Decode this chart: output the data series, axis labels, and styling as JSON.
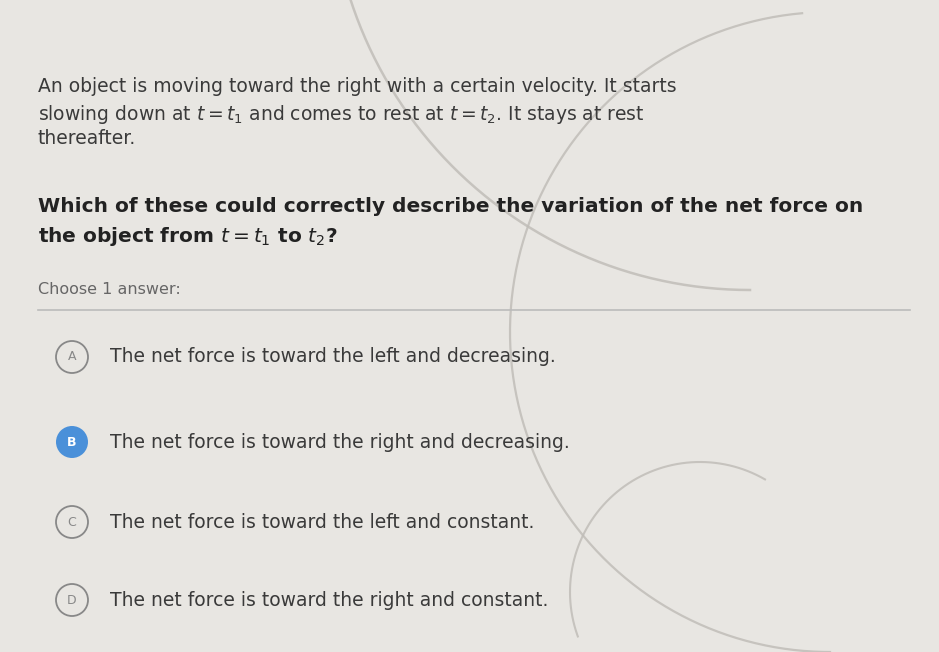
{
  "bg_color": "#e8e6e2",
  "title_paragraph_line1": "An object is moving toward the right with a certain velocity. It starts",
  "title_paragraph_line2": "slowing down at $t = t_1$ and comes to rest at $t = t_2$. It stays at rest",
  "title_paragraph_line3": "thereafter.",
  "question_line1": "Which of these could correctly describe the variation of the net force on",
  "question_line2": "the object from $t = t_1$ to $t_2$?",
  "choose_label": "Choose 1 answer:",
  "options": [
    {
      "label": "A",
      "text": "The net force is toward the left and decreasing.",
      "selected": false
    },
    {
      "label": "B",
      "text": "The net force is toward the right and decreasing.",
      "selected": true
    },
    {
      "label": "C",
      "text": "The net force is toward the left and constant.",
      "selected": false
    },
    {
      "label": "D",
      "text": "The net force is toward the right and constant.",
      "selected": false
    }
  ],
  "selected_color": "#4a90d9",
  "unselected_edge_color": "#888888",
  "separator_color": "#bbbbbb",
  "text_color": "#3a3a3a",
  "question_color": "#222222",
  "option_text_color": "#3a3a3a",
  "choose_text_color": "#666666",
  "arc_color": "#c0bdb8",
  "title_fontsize": 13.5,
  "question_fontsize": 14.5,
  "option_fontsize": 13.5,
  "choose_fontsize": 11.5
}
